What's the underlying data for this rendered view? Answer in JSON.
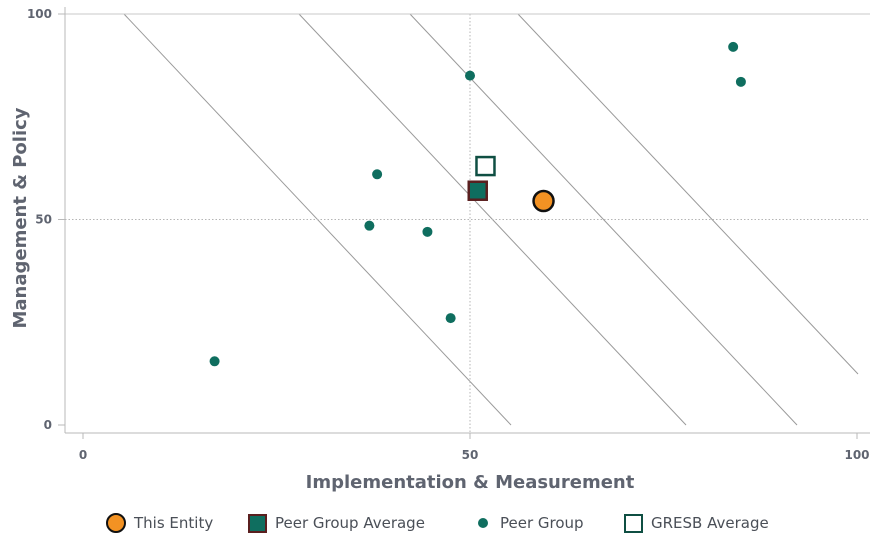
{
  "chart_data": {
    "type": "scatter",
    "xlabel": "Implementation & Measurement",
    "ylabel": "Management & Policy",
    "xlim": [
      0,
      100
    ],
    "ylim": [
      0,
      100
    ],
    "xticks": [
      "0",
      "50",
      "100"
    ],
    "yticks": [
      "0",
      "50",
      "100"
    ],
    "grid": "dotted reference lines at 50",
    "legend_placement": "bottom",
    "colors": {
      "entity": "#f39223",
      "peer": "#0f6e5f",
      "peer_avg_border": "#5a1f1f",
      "gresb_border": "#0f4f43"
    },
    "series": [
      {
        "name": "This Entity",
        "marker": "circle-large",
        "points": [
          {
            "x": 59.5,
            "y": 54.5
          }
        ]
      },
      {
        "name": "Peer Group Average",
        "marker": "square-filled",
        "points": [
          {
            "x": 51,
            "y": 57
          }
        ]
      },
      {
        "name": "Peer Group",
        "marker": "dot",
        "points": [
          {
            "x": 17,
            "y": 15.5
          },
          {
            "x": 37,
            "y": 48.5
          },
          {
            "x": 38,
            "y": 61
          },
          {
            "x": 44.5,
            "y": 47
          },
          {
            "x": 47.5,
            "y": 26
          },
          {
            "x": 50,
            "y": 85
          },
          {
            "x": 84,
            "y": 92
          },
          {
            "x": 85,
            "y": 83.5
          }
        ]
      },
      {
        "name": "GRESB Average",
        "marker": "square-open",
        "points": [
          {
            "x": 52,
            "y": 63
          }
        ]
      }
    ]
  },
  "legend": {
    "entity": "This Entity",
    "peer_avg": "Peer Group Average",
    "peer": "Peer Group",
    "gresb": "GRESB Average"
  }
}
